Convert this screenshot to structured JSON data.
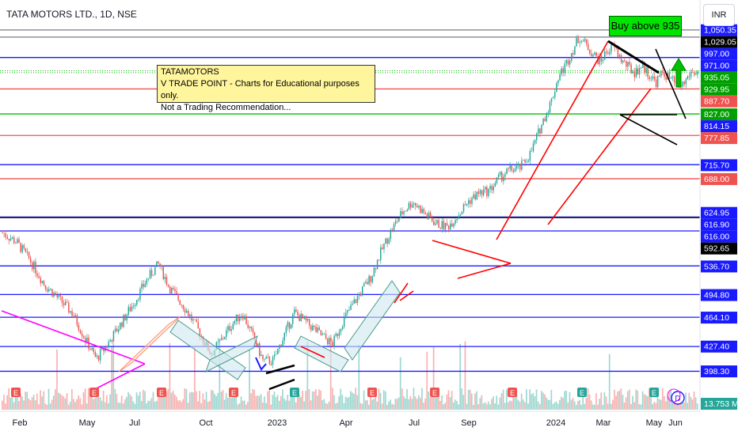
{
  "header": {
    "title": "TATA MOTORS LTD., 1D, NSE",
    "currency": "INR"
  },
  "annotation": {
    "lines": [
      "TATAMOTORS",
      "V TRADE POINT - Charts for Educational purposes only.",
      "Not a Trading Recommendation..."
    ]
  },
  "callout": {
    "text": "Buy above 935"
  },
  "colors": {
    "up": "#26a69a",
    "down": "#ef5350",
    "blue": "#1a1aff",
    "green": "#00c000",
    "red": "#ff0000",
    "magenta": "#ff00ff",
    "black": "#000000",
    "gray": "#787b86",
    "note": "#fff59d"
  },
  "chart_data": {
    "type": "candlestick",
    "y_scale": "log",
    "ylim": [
      380,
      1045
    ],
    "x_ticks": [
      "Feb",
      "May",
      "Jul",
      "Oct",
      "2023",
      "Apr",
      "Jul",
      "Sep",
      "2024",
      "Mar",
      "May",
      "Jun"
    ],
    "price_labels": [
      {
        "text": "1,050.35",
        "color": "#1a1aff",
        "value": 1050.35
      },
      {
        "text": "1,029.05",
        "color": "#000000",
        "value": 1029.05
      },
      {
        "text": "997.00",
        "color": "#1a1aff",
        "value": 997
      },
      {
        "text": "971.00",
        "color": "#1a1aff",
        "value": 971
      },
      {
        "text": "935.05",
        "color": "#00a000",
        "value": 935.05
      },
      {
        "text": "929.95",
        "color": "#00a000",
        "value": 929.95
      },
      {
        "text": "887.70",
        "color": "#ef5350",
        "value": 887.7
      },
      {
        "text": "827.00",
        "color": "#00a000",
        "value": 827
      },
      {
        "text": "814.15",
        "color": "#1a1aff",
        "value": 814.15
      },
      {
        "text": "777.85",
        "color": "#ef5350",
        "value": 777.85
      },
      {
        "text": "715.70",
        "color": "#1a1aff",
        "value": 715.7
      },
      {
        "text": "688.00",
        "color": "#ef5350",
        "value": 688
      },
      {
        "text": "624.95",
        "color": "#1a1aff",
        "value": 624.95
      },
      {
        "text": "616.90",
        "color": "#1a1aff",
        "value": 616.9
      },
      {
        "text": "616.00",
        "color": "#1a1aff",
        "value": 616
      },
      {
        "text": "592.65",
        "color": "#000000",
        "value": 592.65
      },
      {
        "text": "536.70",
        "color": "#1a1aff",
        "value": 536.7
      },
      {
        "text": "494.80",
        "color": "#1a1aff",
        "value": 494.8
      },
      {
        "text": "464.10",
        "color": "#1a1aff",
        "value": 464.1
      },
      {
        "text": "427.40",
        "color": "#1a1aff",
        "value": 427.4
      },
      {
        "text": "398.30",
        "color": "#1a1aff",
        "value": 398.3
      },
      {
        "text": "13.753 M",
        "color": "#26a69a",
        "value": null
      }
    ],
    "levels": [
      {
        "value": 1050,
        "color": "#787b86"
      },
      {
        "value": 1029,
        "color": "#787b86"
      },
      {
        "value": 971,
        "color": "#1a1aff"
      },
      {
        "value": 935,
        "color": "#00c000",
        "dotted": true
      },
      {
        "value": 930,
        "color": "#00c000",
        "dotted": true
      },
      {
        "value": 888,
        "color": "#ef5350"
      },
      {
        "value": 827,
        "color": "#00c000"
      },
      {
        "value": 778,
        "color": "#ef5350"
      },
      {
        "value": 716,
        "color": "#1a1aff"
      },
      {
        "value": 688,
        "color": "#ef5350"
      },
      {
        "value": 617,
        "color": "#1a1aff"
      },
      {
        "value": 616,
        "color": "#000000"
      },
      {
        "value": 593,
        "color": "#1a1aff"
      },
      {
        "value": 537,
        "color": "#1a1aff"
      },
      {
        "value": 495,
        "color": "#1a1aff"
      },
      {
        "value": 464,
        "color": "#1a1aff"
      },
      {
        "value": 427,
        "color": "#1a1aff"
      },
      {
        "value": 398,
        "color": "#1a1aff"
      }
    ],
    "price_path": [
      [
        0,
        590
      ],
      [
        0.02,
        575
      ],
      [
        0.04,
        545
      ],
      [
        0.06,
        510
      ],
      [
        0.08,
        490
      ],
      [
        0.1,
        470
      ],
      [
        0.12,
        435
      ],
      [
        0.135,
        412
      ],
      [
        0.15,
        428
      ],
      [
        0.17,
        455
      ],
      [
        0.19,
        485
      ],
      [
        0.21,
        520
      ],
      [
        0.225,
        540
      ],
      [
        0.24,
        505
      ],
      [
        0.26,
        480
      ],
      [
        0.28,
        450
      ],
      [
        0.3,
        418
      ],
      [
        0.315,
        435
      ],
      [
        0.33,
        455
      ],
      [
        0.345,
        470
      ],
      [
        0.36,
        440
      ],
      [
        0.375,
        410
      ],
      [
        0.39,
        410
      ],
      [
        0.405,
        440
      ],
      [
        0.42,
        470
      ],
      [
        0.44,
        455
      ],
      [
        0.46,
        440
      ],
      [
        0.475,
        430
      ],
      [
        0.49,
        460
      ],
      [
        0.51,
        490
      ],
      [
        0.53,
        520
      ],
      [
        0.545,
        560
      ],
      [
        0.56,
        595
      ],
      [
        0.575,
        625
      ],
      [
        0.59,
        645
      ],
      [
        0.61,
        620
      ],
      [
        0.625,
        605
      ],
      [
        0.64,
        600
      ],
      [
        0.655,
        620
      ],
      [
        0.67,
        645
      ],
      [
        0.685,
        660
      ],
      [
        0.7,
        665
      ],
      [
        0.715,
        690
      ],
      [
        0.73,
        705
      ],
      [
        0.745,
        710
      ],
      [
        0.76,
        740
      ],
      [
        0.775,
        800
      ],
      [
        0.79,
        860
      ],
      [
        0.8,
        920
      ],
      [
        0.81,
        950
      ],
      [
        0.82,
        990
      ],
      [
        0.83,
        1030
      ],
      [
        0.84,
        1005
      ],
      [
        0.85,
        980
      ],
      [
        0.86,
        960
      ],
      [
        0.87,
        990
      ],
      [
        0.88,
        1000
      ],
      [
        0.89,
        965
      ],
      [
        0.9,
        945
      ],
      [
        0.91,
        930
      ],
      [
        0.92,
        950
      ],
      [
        0.93,
        925
      ],
      [
        0.94,
        905
      ],
      [
        0.95,
        930
      ],
      [
        0.96,
        915
      ],
      [
        0.97,
        895
      ],
      [
        0.98,
        900
      ],
      [
        0.99,
        930
      ],
      [
        1.0,
        930
      ]
    ]
  }
}
